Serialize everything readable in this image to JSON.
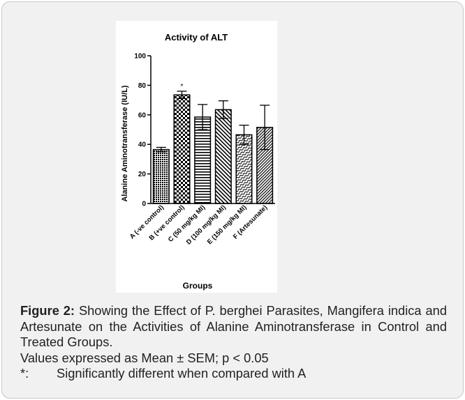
{
  "chart_data": {
    "type": "bar",
    "title": "Activity of ALT",
    "xlabel": "Groups",
    "ylabel": "Alanine Aminotransferase (IU/L)",
    "ylim": [
      0,
      100
    ],
    "yticks": [
      "0",
      "20",
      "40",
      "60",
      "80",
      "100"
    ],
    "categories": [
      "A (-ve control)",
      "B (+ve control)",
      "C (50 mg/kg MI)",
      "D (100 mg/kg MI)",
      "E (150 mg/kg MI)",
      "F (Artesunate)"
    ],
    "values": [
      36.5,
      73.5,
      58.5,
      63.5,
      46.5,
      51.5
    ],
    "errors": [
      1.5,
      2.5,
      8.5,
      6.0,
      6.5,
      15.0
    ],
    "annotations": [
      {
        "category": "B (+ve control)",
        "text": "*"
      }
    ],
    "patterns": [
      "dense-dots",
      "checker",
      "horizontal-lines",
      "diagonal-hatch",
      "wavy",
      "diagonal-fine"
    ],
    "bar_color": "#000000"
  },
  "caption": {
    "label": "Figure 2:",
    "text": "Showing the Effect of P. berghei Parasites, Mangifera indica and Artesunate on the Activities of Alanine Aminotransferase in Control and Treated Groups.",
    "values_note": "Values expressed as Mean ± SEM; p < 0.05",
    "sig_symbol": "*:",
    "sig_text": "Significantly different when compared with A"
  }
}
